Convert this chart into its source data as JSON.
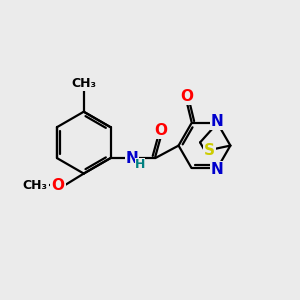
{
  "background_color": "#ebebeb",
  "bond_color": "#000000",
  "atom_colors": {
    "O": "#ff0000",
    "N": "#0000cc",
    "S": "#cccc00",
    "H": "#008080",
    "C": "#000000"
  },
  "bond_width": 1.6,
  "font_size_atom": 11,
  "title": ""
}
